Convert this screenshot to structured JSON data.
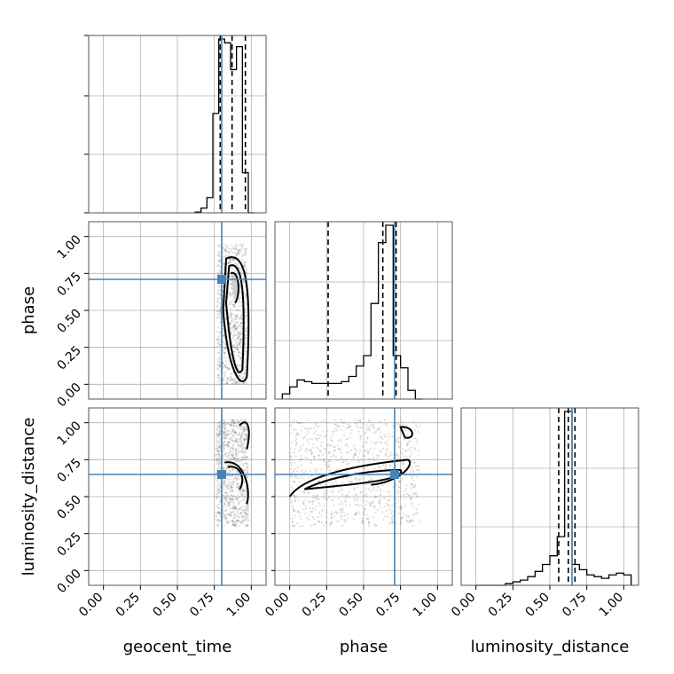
{
  "chart_data": {
    "type": "scatter",
    "subtype": "corner-plot",
    "parameters": [
      "geocent_time",
      "phase",
      "luminosity_distance"
    ],
    "axis_labels": {
      "x": [
        "geocent_time",
        "phase",
        "luminosity_distance"
      ],
      "y": [
        "",
        "phase",
        "luminosity_distance"
      ]
    },
    "tick_labels": [
      "0.00",
      "0.25",
      "0.50",
      "0.75",
      "1.00"
    ],
    "ticks": [
      0.0,
      0.25,
      0.5,
      0.75,
      1.0
    ],
    "range": [
      -0.1,
      1.1
    ],
    "grid": true,
    "colors": {
      "truth": "#4682b4",
      "hist": "#000000",
      "contour": "#000000",
      "scatter": "#555555",
      "grid": "#b0b0b0"
    },
    "truths": {
      "geocent_time": 0.8,
      "phase": 0.71,
      "luminosity_distance": 0.65
    },
    "quantiles": {
      "geocent_time": [
        0.79,
        0.87,
        0.96
      ],
      "phase": [
        0.26,
        0.63,
        0.72
      ],
      "luminosity_distance": [
        0.56,
        0.625,
        0.67
      ]
    },
    "histograms": {
      "geocent_time": {
        "edges": [
          0.62,
          0.66,
          0.7,
          0.74,
          0.78,
          0.82,
          0.86,
          0.9,
          0.94,
          0.98,
          1.02
        ],
        "counts": [
          0.4,
          2.5,
          8.0,
          52,
          91,
          89,
          75,
          87,
          21,
          0
        ]
      },
      "phase": {
        "edges": [
          -0.05,
          0.0,
          0.05,
          0.1,
          0.15,
          0.2,
          0.25,
          0.3,
          0.35,
          0.4,
          0.45,
          0.5,
          0.55,
          0.6,
          0.65,
          0.7,
          0.75,
          0.8,
          0.85,
          0.9
        ],
        "counts": [
          3,
          7,
          11,
          10,
          9,
          9,
          9,
          9,
          10,
          13,
          19,
          25,
          55,
          90,
          100,
          25,
          18,
          5,
          0
        ]
      },
      "luminosity_distance": {
        "edges": [
          0.0,
          0.05,
          0.1,
          0.15,
          0.2,
          0.25,
          0.3,
          0.35,
          0.4,
          0.45,
          0.5,
          0.55,
          0.6,
          0.65,
          0.7,
          0.75,
          0.8,
          0.85,
          0.9,
          0.95,
          1.0,
          1.05
        ],
        "counts": [
          0,
          0,
          0,
          0,
          1,
          2,
          3,
          5,
          8,
          12,
          17,
          28,
          100,
          12,
          9,
          6,
          5,
          4,
          6,
          7,
          6
        ]
      }
    },
    "scatter_regions": {
      "phase_vs_geocent_time": [
        [
          0.77,
          0.97,
          0.0,
          0.95
        ]
      ],
      "luminosity_distance_vs_geocent_time": [
        [
          0.76,
          0.98,
          0.3,
          1.02
        ]
      ],
      "luminosity_distance_vs_phase": [
        [
          0.0,
          0.88,
          0.3,
          1.02
        ]
      ]
    }
  }
}
